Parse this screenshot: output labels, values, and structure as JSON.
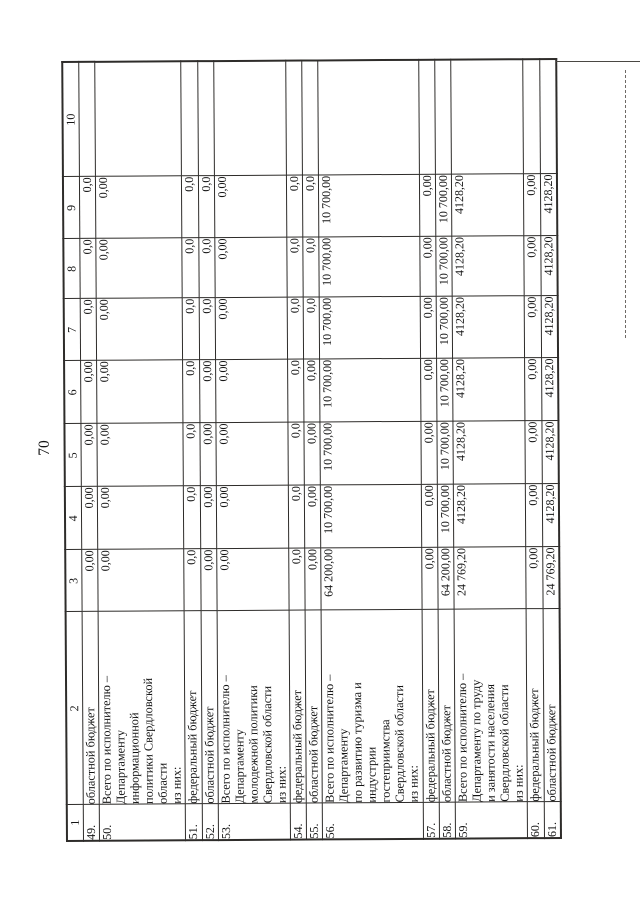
{
  "page": {
    "number": "70"
  },
  "table": {
    "header": [
      "1",
      "2",
      "3",
      "4",
      "5",
      "6",
      "7",
      "8",
      "9",
      "10"
    ],
    "rows": [
      {
        "num": "49.",
        "label": "областной бюджет",
        "values": [
          "0,00",
          "0,00",
          "0,00",
          "0,00",
          "0,0",
          "0,0",
          "0,0",
          ""
        ]
      },
      {
        "num": "50.",
        "label": "Всего по исполнителю –\nДепартаменту\nинформационной\nполитики Свердловской\nобласти\nиз них:",
        "values": [
          "0,00",
          "0,00",
          "0,00",
          "0,00",
          "0,00",
          "0,00",
          "0,00",
          ""
        ]
      },
      {
        "num": "51.",
        "label": "федеральный бюджет",
        "values": [
          "0,0",
          "0,0",
          "0,0",
          "0,0",
          "0,0",
          "0,0",
          "0,0",
          ""
        ]
      },
      {
        "num": "52.",
        "label": "областной бюджет",
        "values": [
          "0,00",
          "0,00",
          "0,00",
          "0,00",
          "0,0",
          "0,0",
          "0,0",
          ""
        ]
      },
      {
        "num": "53.",
        "label": "Всего по исполнителю –\nДепартаменту\nмолодежной политики\nСвердловской области\nиз них:",
        "values": [
          "0,00",
          "0,00",
          "0,00",
          "0,00",
          "0,00",
          "0,00",
          "0,00",
          ""
        ]
      },
      {
        "num": "54.",
        "label": "федеральный бюджет",
        "values": [
          "0,0",
          "0,0",
          "0,0",
          "0,0",
          "0,0",
          "0,0",
          "0,0",
          ""
        ]
      },
      {
        "num": "55.",
        "label": "областной бюджет",
        "values": [
          "0,00",
          "0,00",
          "0,00",
          "0,00",
          "0,0",
          "0,0",
          "0,0",
          ""
        ]
      },
      {
        "num": "56.",
        "label": "Всего по исполнителю –\nДепартаменту\nпо развитию туризма и\nиндустрии\nгостеприимства\nСвердловской области\nиз них:",
        "values": [
          "64 200,00",
          "10 700,00",
          "10 700,00",
          "10 700,00",
          "10 700,00",
          "10 700,00",
          "10 700,00",
          ""
        ]
      },
      {
        "num": "57.",
        "label": "федеральный бюджет",
        "values": [
          "0,00",
          "0,00",
          "0,00",
          "0,00",
          "0,00",
          "0,00",
          "0,00",
          ""
        ]
      },
      {
        "num": "58.",
        "label": "областной бюджет",
        "values": [
          "64 200,00",
          "10 700,00",
          "10 700,00",
          "10 700,00",
          "10 700,00",
          "10 700,00",
          "10 700,00",
          ""
        ]
      },
      {
        "num": "59.",
        "label": "Всего по исполнителю –\nДепартаменту по труду\nи занятости населения\nСвердловской области\nиз них:",
        "values": [
          "24 769,20",
          "4128,20",
          "4128,20",
          "4128,20",
          "4128,20",
          "4128,20",
          "4128,20",
          ""
        ]
      },
      {
        "num": "60.",
        "label": "федеральный бюджет",
        "values": [
          "0,00",
          "0,00",
          "0,00",
          "0,00",
          "0,00",
          "0,00",
          "0,00",
          ""
        ]
      },
      {
        "num": "61.",
        "label": "областной бюджет",
        "values": [
          "24 769,20",
          "4128,20",
          "4128,20",
          "4128,20",
          "4128,20",
          "4128,20",
          "4128,20",
          ""
        ]
      }
    ]
  }
}
